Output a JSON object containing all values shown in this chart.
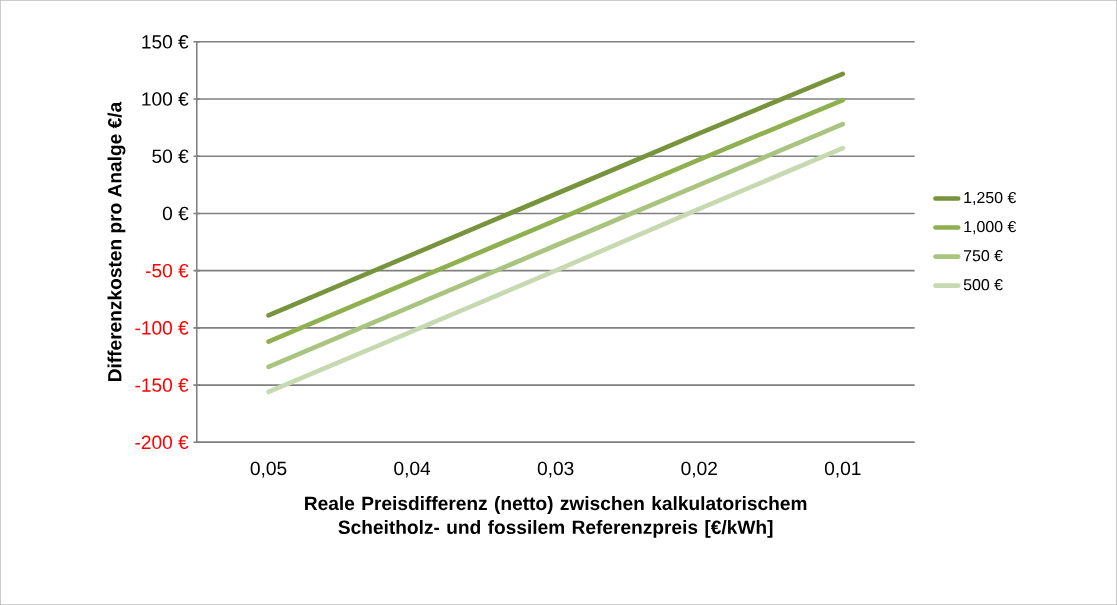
{
  "chart_data": {
    "type": "line",
    "xlabel": "Reale Preisdifferenz (netto) zwischen kalkulatorischem  Scheitholz- und fossilem Referenzpreis [€/kWh]",
    "ylabel": "Differenzkosten pro Analge €/a",
    "categories": [
      "0,05",
      "0,04",
      "0,03",
      "0,02",
      "0,01"
    ],
    "series": [
      {
        "name": "1,250 €",
        "color": "#77933c",
        "values": [
          -89,
          -36,
          17,
          70,
          122
        ]
      },
      {
        "name": "1,000 €",
        "color": "#8fb04f",
        "values": [
          -112,
          -59,
          -6,
          47,
          99
        ]
      },
      {
        "name": "750 €",
        "color": "#a9c47f",
        "values": [
          -134,
          -81,
          -28,
          25,
          78
        ]
      },
      {
        "name": "500 €",
        "color": "#c6d9b1",
        "values": [
          -156,
          -103,
          -50,
          4,
          57
        ]
      }
    ],
    "ylim": [
      -200,
      150
    ],
    "yticks": [
      {
        "value": -200,
        "label": "-200 €"
      },
      {
        "value": -150,
        "label": "-150 €"
      },
      {
        "value": -100,
        "label": "-100 €"
      },
      {
        "value": -50,
        "label": "-50 €"
      },
      {
        "value": 0,
        "label": "0 €"
      },
      {
        "value": 50,
        "label": "50 €"
      },
      {
        "value": 100,
        "label": "100 €"
      },
      {
        "value": 150,
        "label": "150 €"
      }
    ],
    "grid": "y",
    "legend": "right",
    "marker": "none",
    "line_style": "solid"
  }
}
